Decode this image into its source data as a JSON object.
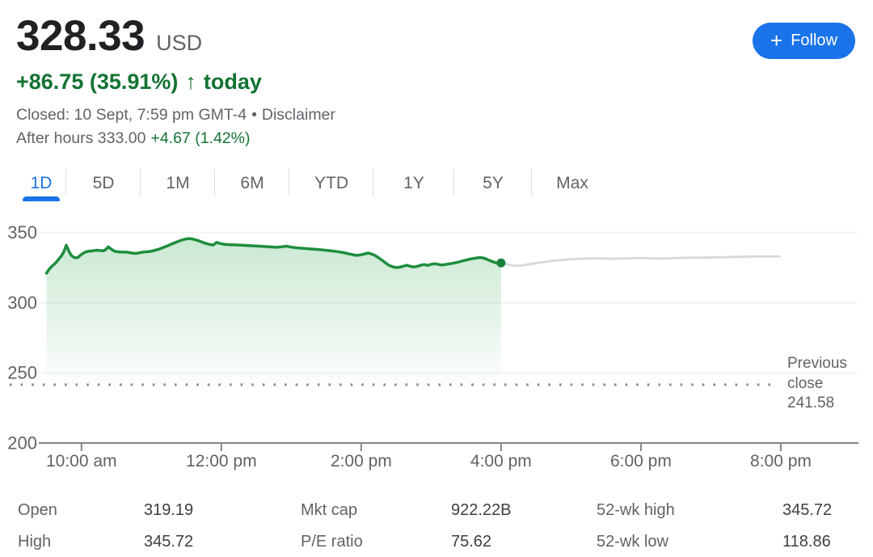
{
  "header": {
    "price": "328.33",
    "currency": "USD",
    "change_value": "+86.75 (35.91%)",
    "change_arrow": "↑",
    "change_period": "today",
    "closed_text": "Closed: 10 Sept, 7:59 pm GMT-4",
    "separator": "•",
    "disclaimer_link": "Disclaimer",
    "after_hours_text": "After hours 333.00",
    "after_hours_change": "+4.67 (1.42%)",
    "follow_button": {
      "icon": "+",
      "label": "Follow"
    }
  },
  "tabs": {
    "items": [
      {
        "label": "1D",
        "active": true
      },
      {
        "label": "5D",
        "active": false
      },
      {
        "label": "1M",
        "active": false
      },
      {
        "label": "6M",
        "active": false
      },
      {
        "label": "YTD",
        "active": false
      },
      {
        "label": "1Y",
        "active": false
      },
      {
        "label": "5Y",
        "active": false
      },
      {
        "label": "Max",
        "active": false
      }
    ]
  },
  "chart_data": {
    "type": "area",
    "title": "1-day stock price chart",
    "x_axis": {
      "ticks": [
        "10:00 am",
        "12:00 pm",
        "2:00 pm",
        "4:00 pm",
        "6:00 pm",
        "8:00 pm"
      ],
      "tick_minutes": [
        600,
        720,
        840,
        960,
        1080,
        1200
      ],
      "range_minutes": [
        570,
        1200
      ]
    },
    "y_axis": {
      "ticks": [
        200,
        250,
        300,
        350
      ],
      "range": [
        200,
        362
      ]
    },
    "previous_close": {
      "label": "Previous close 241.58",
      "value": 241.58
    },
    "last_regular_trade": {
      "minute": 960,
      "value": 328.33
    },
    "series": [
      {
        "name": "regular-session",
        "color": "#1e8e3e",
        "points": [
          [
            570,
            321
          ],
          [
            572,
            323.5
          ],
          [
            574,
            325.5
          ],
          [
            576,
            327
          ],
          [
            578,
            328.5
          ],
          [
            580,
            330.5
          ],
          [
            583,
            333.5
          ],
          [
            585,
            336.5
          ],
          [
            587,
            341
          ],
          [
            589,
            337
          ],
          [
            591,
            334
          ],
          [
            593,
            332.5
          ],
          [
            595,
            332
          ],
          [
            597,
            332.3
          ],
          [
            599,
            333.8
          ],
          [
            601,
            335
          ],
          [
            604,
            336.3
          ],
          [
            607,
            336.8
          ],
          [
            610,
            337
          ],
          [
            613,
            337.4
          ],
          [
            616,
            337.2
          ],
          [
            619,
            337
          ],
          [
            621,
            338
          ],
          [
            623,
            339.8
          ],
          [
            625,
            338.5
          ],
          [
            628,
            336.8
          ],
          [
            631,
            336.3
          ],
          [
            635,
            336
          ],
          [
            639,
            336
          ],
          [
            643,
            335.4
          ],
          [
            647,
            335.1
          ],
          [
            650,
            335.7
          ],
          [
            654,
            336.2
          ],
          [
            658,
            336.4
          ],
          [
            662,
            337.1
          ],
          [
            666,
            338
          ],
          [
            670,
            339.3
          ],
          [
            674,
            340.6
          ],
          [
            678,
            342
          ],
          [
            682,
            343.4
          ],
          [
            686,
            344.6
          ],
          [
            689,
            345.3
          ],
          [
            692,
            345.7
          ],
          [
            695,
            345.5
          ],
          [
            698,
            344.8
          ],
          [
            701,
            344
          ],
          [
            704,
            343
          ],
          [
            707,
            342.2
          ],
          [
            710,
            341.5
          ],
          [
            713,
            341.1
          ],
          [
            716,
            343
          ],
          [
            719,
            342.2
          ],
          [
            722,
            341.7
          ],
          [
            726,
            341.4
          ],
          [
            731,
            341.2
          ],
          [
            737,
            341
          ],
          [
            743,
            340.7
          ],
          [
            749,
            340.4
          ],
          [
            755,
            340.1
          ],
          [
            761,
            339.8
          ],
          [
            767,
            339.5
          ],
          [
            772,
            339.9
          ],
          [
            776,
            340.3
          ],
          [
            780,
            339.6
          ],
          [
            785,
            339.1
          ],
          [
            791,
            338.7
          ],
          [
            797,
            338.3
          ],
          [
            803,
            337.9
          ],
          [
            809,
            337.4
          ],
          [
            815,
            336.9
          ],
          [
            820,
            336.4
          ],
          [
            825,
            335.7
          ],
          [
            829,
            334.9
          ],
          [
            833,
            334.2
          ],
          [
            836,
            333.7
          ],
          [
            839,
            334
          ],
          [
            843,
            334.8
          ],
          [
            846,
            335.4
          ],
          [
            849,
            334.7
          ],
          [
            852,
            333.6
          ],
          [
            855,
            332
          ],
          [
            858,
            330.2
          ],
          [
            861,
            328.3
          ],
          [
            864,
            326.6
          ],
          [
            867,
            325.6
          ],
          [
            870,
            325
          ],
          [
            873,
            325.3
          ],
          [
            876,
            326
          ],
          [
            879,
            326.7
          ],
          [
            882,
            326
          ],
          [
            885,
            325.4
          ],
          [
            888,
            325.9
          ],
          [
            891,
            326.7
          ],
          [
            894,
            327.2
          ],
          [
            897,
            326.6
          ],
          [
            900,
            327.4
          ],
          [
            903,
            327.8
          ],
          [
            906,
            327.3
          ],
          [
            909,
            326.9
          ],
          [
            912,
            327.2
          ],
          [
            915,
            327.6
          ],
          [
            918,
            328
          ],
          [
            921,
            328.5
          ],
          [
            924,
            329.1
          ],
          [
            927,
            329.8
          ],
          [
            930,
            330.4
          ],
          [
            933,
            331
          ],
          [
            936,
            331.5
          ],
          [
            939,
            331.9
          ],
          [
            942,
            332.2
          ],
          [
            945,
            331.8
          ],
          [
            948,
            330.9
          ],
          [
            951,
            329.8
          ],
          [
            954,
            328.9
          ],
          [
            956,
            328.3
          ],
          [
            958,
            328.1
          ],
          [
            960,
            328.33
          ]
        ]
      },
      {
        "name": "after-hours",
        "color": "#d7dadd",
        "points": [
          [
            960,
            328.33
          ],
          [
            964,
            327.6
          ],
          [
            968,
            326.9
          ],
          [
            972,
            326.3
          ],
          [
            976,
            326.4
          ],
          [
            980,
            326.8
          ],
          [
            985,
            327.5
          ],
          [
            990,
            328.2
          ],
          [
            996,
            328.9
          ],
          [
            1002,
            329.6
          ],
          [
            1009,
            330.2
          ],
          [
            1016,
            330.7
          ],
          [
            1024,
            331.1
          ],
          [
            1032,
            331.4
          ],
          [
            1040,
            331.6
          ],
          [
            1048,
            331.5
          ],
          [
            1056,
            331.3
          ],
          [
            1064,
            331.4
          ],
          [
            1072,
            331.7
          ],
          [
            1080,
            331.9
          ],
          [
            1088,
            331.6
          ],
          [
            1096,
            331.4
          ],
          [
            1104,
            331.6
          ],
          [
            1112,
            331.9
          ],
          [
            1120,
            332.1
          ],
          [
            1130,
            332.1
          ],
          [
            1140,
            332.2
          ],
          [
            1150,
            332.4
          ],
          [
            1160,
            332.6
          ],
          [
            1170,
            332.8
          ],
          [
            1180,
            332.9
          ],
          [
            1190,
            333
          ],
          [
            1199,
            333
          ]
        ]
      }
    ],
    "after_hours_last_value": 333.0
  },
  "stats": {
    "items": [
      {
        "label": "Open",
        "value": "319.19"
      },
      {
        "label": "High",
        "value": "345.72"
      },
      {
        "label": "Mkt cap",
        "value": "922.22B"
      },
      {
        "label": "P/E ratio",
        "value": "75.62"
      },
      {
        "label": "52-wk high",
        "value": "345.72"
      },
      {
        "label": "52-wk low",
        "value": "118.86"
      }
    ]
  },
  "colors": {
    "accent_blue": "#1a73e8",
    "green_text": "#137333",
    "green_line": "#1e8e3e",
    "after_hours_line": "#d7dadd",
    "axis_gray": "#80868b",
    "label_gray": "#5f6368",
    "dark_text": "#202124"
  }
}
